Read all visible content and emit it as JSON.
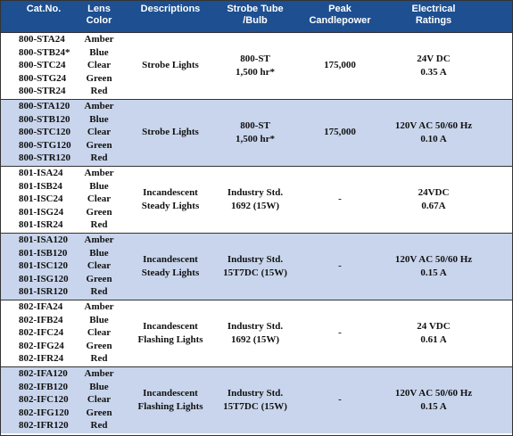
{
  "header": [
    [
      "Cat.No."
    ],
    [
      "Lens",
      "Color"
    ],
    [
      "Descriptions"
    ],
    [
      "Strobe Tube",
      "/Bulb"
    ],
    [
      "Peak",
      "Candlepower"
    ],
    [
      "Electrical",
      "Ratings"
    ]
  ],
  "groups": [
    {
      "cat_nos": [
        "800-STA24",
        "800-STB24*",
        "800-STC24",
        "800-STG24",
        "800-STR24"
      ],
      "colors": [
        "Amber",
        "Blue",
        "Clear",
        "Green",
        "Red"
      ],
      "description": [
        "Strobe Lights"
      ],
      "bulb": [
        "800-ST",
        "1,500 hr*"
      ],
      "candlepower": "175,000",
      "electrical": [
        "24V DC",
        "0.35 A"
      ]
    },
    {
      "cat_nos": [
        "800-STA120",
        "800-STB120",
        "800-STC120",
        "800-STG120",
        "800-STR120"
      ],
      "colors": [
        "Amber",
        "Blue",
        "Clear",
        "Green",
        "Red"
      ],
      "description": [
        "Strobe Lights"
      ],
      "bulb": [
        "800-ST",
        "1,500 hr*"
      ],
      "candlepower": "175,000",
      "electrical": [
        "120V AC 50/60 Hz",
        "0.10 A"
      ]
    },
    {
      "cat_nos": [
        "801-ISA24",
        "801-ISB24",
        "801-ISC24",
        "801-ISG24",
        "801-ISR24"
      ],
      "colors": [
        "Amber",
        "Blue",
        "Clear",
        "Green",
        "Red"
      ],
      "description": [
        "Incandescent",
        "Steady Lights"
      ],
      "bulb": [
        "Industry Std.",
        "1692 (15W)"
      ],
      "candlepower": "-",
      "electrical": [
        "24VDC",
        "0.67A"
      ]
    },
    {
      "cat_nos": [
        "801-ISA120",
        "801-ISB120",
        "801-ISC120",
        "801-ISG120",
        "801-ISR120"
      ],
      "colors": [
        "Amber",
        "Blue",
        "Clear",
        "Green",
        "Red"
      ],
      "description": [
        "Incandescent",
        "Steady Lights"
      ],
      "bulb": [
        "Industry Std.",
        "15T7DC (15W)"
      ],
      "candlepower": "-",
      "electrical": [
        "120V AC 50/60 Hz",
        "0.15 A"
      ]
    },
    {
      "cat_nos": [
        "802-IFA24",
        "802-IFB24",
        "802-IFC24",
        "802-IFG24",
        "802-IFR24"
      ],
      "colors": [
        "Amber",
        "Blue",
        "Clear",
        "Green",
        "Red"
      ],
      "description": [
        "Incandescent",
        "Flashing Lights"
      ],
      "bulb": [
        "Industry Std.",
        "1692 (15W)"
      ],
      "candlepower": "-",
      "electrical": [
        "24 VDC",
        "0.61 A"
      ]
    },
    {
      "cat_nos": [
        "802-IFA120",
        "802-IFB120",
        "802-IFC120",
        "802-IFG120",
        "802-IFR120"
      ],
      "colors": [
        "Amber",
        "Blue",
        "Clear",
        "Green",
        "Red"
      ],
      "description": [
        "Incandescent",
        "Flashing Lights"
      ],
      "bulb": [
        "Industry Std.",
        "15T7DC (15W)"
      ],
      "candlepower": "-",
      "electrical": [
        "120V AC 50/60 Hz",
        "0.15 A"
      ]
    }
  ]
}
